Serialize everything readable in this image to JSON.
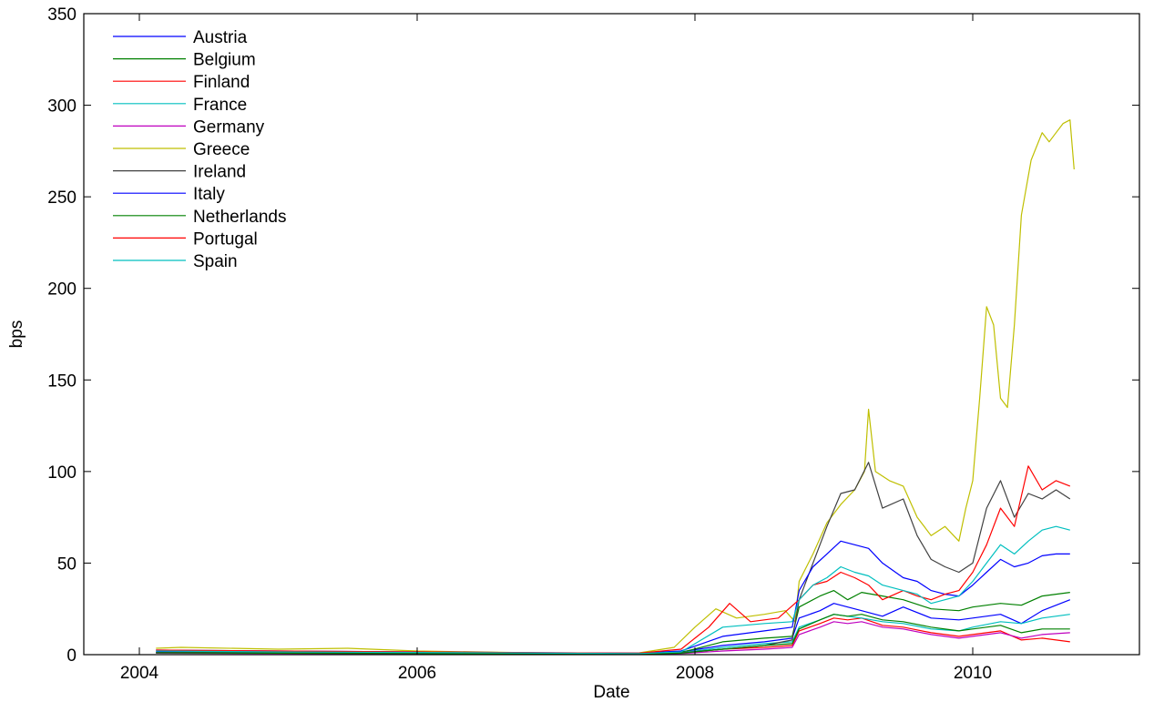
{
  "chart_data": {
    "type": "line",
    "title": "",
    "xlabel": "Date",
    "ylabel": "bps",
    "xlim": [
      2003.6,
      2011.2
    ],
    "ylim": [
      0,
      350
    ],
    "xticks": [
      2004,
      2006,
      2008,
      2010
    ],
    "yticks": [
      0,
      50,
      100,
      150,
      200,
      250,
      300,
      350
    ],
    "grid": false,
    "legend_position": "top-left",
    "series": [
      {
        "name": "Austria",
        "color": "#0000ff",
        "x": [
          2004.12,
          2005.0,
          2006.0,
          2007.0,
          2007.6,
          2007.9,
          2008.2,
          2008.5,
          2008.7,
          2008.75,
          2008.9,
          2009.0,
          2009.1,
          2009.2,
          2009.35,
          2009.5,
          2009.7,
          2009.9,
          2010.0,
          2010.2,
          2010.35,
          2010.5,
          2010.7
        ],
        "y": [
          1.5,
          1.2,
          0.8,
          0.5,
          0.4,
          1.5,
          5,
          7,
          9,
          20,
          24,
          28,
          26,
          24,
          21,
          26,
          20,
          19,
          20,
          22,
          17,
          24,
          30
        ]
      },
      {
        "name": "Belgium",
        "color": "#008000",
        "x": [
          2004.12,
          2005.0,
          2006.0,
          2007.0,
          2007.6,
          2007.9,
          2008.2,
          2008.5,
          2008.7,
          2008.75,
          2008.9,
          2009.0,
          2009.1,
          2009.2,
          2009.35,
          2009.5,
          2009.7,
          2009.9,
          2010.0,
          2010.2,
          2010.35,
          2010.5,
          2010.7
        ],
        "y": [
          1.2,
          1.0,
          0.7,
          0.4,
          0.3,
          1.2,
          7,
          9,
          10,
          26,
          32,
          35,
          30,
          34,
          32,
          30,
          25,
          24,
          26,
          28,
          27,
          32,
          34
        ]
      },
      {
        "name": "Finland",
        "color": "#ff0000",
        "x": [
          2004.12,
          2005.0,
          2006.0,
          2007.0,
          2007.6,
          2007.9,
          2008.2,
          2008.5,
          2008.7,
          2008.75,
          2008.9,
          2009.0,
          2009.1,
          2009.2,
          2009.35,
          2009.5,
          2009.7,
          2009.9,
          2010.0,
          2010.2,
          2010.35,
          2010.5,
          2010.7
        ],
        "y": [
          1.0,
          0.8,
          0.6,
          0.3,
          0.3,
          0.8,
          3,
          4,
          5,
          13,
          17,
          20,
          19,
          20,
          16,
          15,
          12,
          10,
          11,
          13,
          8,
          9,
          7
        ]
      },
      {
        "name": "France",
        "color": "#00bfbf",
        "x": [
          2004.12,
          2005.0,
          2006.0,
          2007.0,
          2007.6,
          2007.9,
          2008.2,
          2008.5,
          2008.7,
          2008.75,
          2008.9,
          2009.0,
          2009.1,
          2009.2,
          2009.35,
          2009.5,
          2009.7,
          2009.9,
          2010.0,
          2010.2,
          2010.35,
          2010.5,
          2010.7
        ],
        "y": [
          1.0,
          0.8,
          0.6,
          0.3,
          0.3,
          1.0,
          4,
          6,
          7,
          15,
          19,
          22,
          21,
          20,
          18,
          17,
          14,
          13,
          15,
          18,
          17,
          20,
          22
        ]
      },
      {
        "name": "Germany",
        "color": "#bf00bf",
        "x": [
          2004.12,
          2005.0,
          2006.0,
          2007.0,
          2007.6,
          2007.9,
          2008.2,
          2008.5,
          2008.7,
          2008.75,
          2008.9,
          2009.0,
          2009.1,
          2009.2,
          2009.35,
          2009.5,
          2009.7,
          2009.9,
          2010.0,
          2010.2,
          2010.35,
          2010.5,
          2010.7
        ],
        "y": [
          0.8,
          0.6,
          0.5,
          0.3,
          0.2,
          0.6,
          2,
          3,
          4,
          11,
          15,
          18,
          17,
          18,
          15,
          14,
          11,
          9,
          10,
          12,
          9,
          11,
          12
        ]
      },
      {
        "name": "Greece",
        "color": "#bfbf00",
        "x": [
          2004.12,
          2004.3,
          2005.0,
          2005.5,
          2006.0,
          2007.0,
          2007.6,
          2007.85,
          2008.0,
          2008.15,
          2008.3,
          2008.5,
          2008.65,
          2008.72,
          2008.75,
          2008.85,
          2008.95,
          2009.05,
          2009.15,
          2009.22,
          2009.25,
          2009.3,
          2009.4,
          2009.5,
          2009.6,
          2009.7,
          2009.8,
          2009.9,
          2009.95,
          2010.0,
          2010.05,
          2010.1,
          2010.15,
          2010.2,
          2010.25,
          2010.3,
          2010.35,
          2010.42,
          2010.5,
          2010.55,
          2010.6,
          2010.65,
          2010.7,
          2010.73
        ],
        "y": [
          3.5,
          4,
          3,
          3.5,
          2,
          0.8,
          1,
          4,
          15,
          25,
          20,
          22,
          24,
          18,
          40,
          55,
          72,
          82,
          90,
          100,
          134,
          100,
          95,
          92,
          75,
          65,
          70,
          62,
          80,
          95,
          140,
          190,
          180,
          140,
          135,
          180,
          240,
          270,
          285,
          280,
          285,
          290,
          292,
          265
        ]
      },
      {
        "name": "Ireland",
        "color": "#404040",
        "x": [
          2004.12,
          2005.0,
          2006.0,
          2007.0,
          2007.6,
          2007.9,
          2008.2,
          2008.5,
          2008.7,
          2008.75,
          2008.85,
          2008.95,
          2009.05,
          2009.15,
          2009.25,
          2009.35,
          2009.5,
          2009.6,
          2009.7,
          2009.8,
          2009.9,
          2010.0,
          2010.1,
          2010.2,
          2010.3,
          2010.4,
          2010.5,
          2010.6,
          2010.7
        ],
        "y": [
          1.2,
          1.0,
          0.8,
          0.5,
          0.4,
          1.0,
          3,
          5,
          8,
          30,
          50,
          70,
          88,
          90,
          105,
          80,
          85,
          65,
          52,
          48,
          45,
          50,
          80,
          95,
          75,
          88,
          85,
          90,
          85
        ]
      },
      {
        "name": "Italy",
        "color": "#0000ff",
        "x": [
          2004.12,
          2005.0,
          2006.0,
          2007.0,
          2007.6,
          2007.9,
          2008.2,
          2008.5,
          2008.7,
          2008.75,
          2008.85,
          2008.95,
          2009.05,
          2009.15,
          2009.25,
          2009.35,
          2009.5,
          2009.6,
          2009.7,
          2009.8,
          2009.9,
          2010.0,
          2010.1,
          2010.2,
          2010.3,
          2010.4,
          2010.5,
          2010.6,
          2010.7
        ],
        "y": [
          2.5,
          2.0,
          1.5,
          1.0,
          0.8,
          2,
          10,
          13,
          15,
          35,
          48,
          55,
          62,
          60,
          58,
          50,
          42,
          40,
          35,
          33,
          32,
          38,
          45,
          52,
          48,
          50,
          54,
          55,
          55
        ]
      },
      {
        "name": "Netherlands",
        "color": "#008000",
        "x": [
          2004.12,
          2005.0,
          2006.0,
          2007.0,
          2007.6,
          2007.9,
          2008.2,
          2008.5,
          2008.7,
          2008.75,
          2008.9,
          2009.0,
          2009.1,
          2009.2,
          2009.35,
          2009.5,
          2009.7,
          2009.9,
          2010.0,
          2010.2,
          2010.35,
          2010.5,
          2010.7
        ],
        "y": [
          1.0,
          0.8,
          0.6,
          0.3,
          0.3,
          0.8,
          3,
          5,
          6,
          14,
          19,
          22,
          21,
          22,
          19,
          18,
          15,
          13,
          14,
          16,
          12,
          14,
          14
        ]
      },
      {
        "name": "Portugal",
        "color": "#ff0000",
        "x": [
          2004.12,
          2005.0,
          2006.0,
          2007.0,
          2007.6,
          2007.9,
          2008.1,
          2008.25,
          2008.4,
          2008.6,
          2008.75,
          2008.85,
          2008.95,
          2009.05,
          2009.15,
          2009.25,
          2009.35,
          2009.5,
          2009.6,
          2009.7,
          2009.8,
          2009.9,
          2010.0,
          2010.1,
          2010.2,
          2010.3,
          2010.4,
          2010.5,
          2010.6,
          2010.7
        ],
        "y": [
          2.5,
          2.0,
          1.5,
          1.0,
          0.8,
          3,
          15,
          28,
          18,
          20,
          30,
          38,
          40,
          45,
          42,
          38,
          30,
          35,
          32,
          30,
          33,
          35,
          45,
          60,
          80,
          70,
          103,
          90,
          95,
          92
        ]
      },
      {
        "name": "Spain",
        "color": "#00bfbf",
        "x": [
          2004.12,
          2005.0,
          2006.0,
          2007.0,
          2007.6,
          2007.9,
          2008.2,
          2008.5,
          2008.7,
          2008.75,
          2008.85,
          2008.95,
          2009.05,
          2009.15,
          2009.25,
          2009.35,
          2009.5,
          2009.6,
          2009.7,
          2009.8,
          2009.9,
          2010.0,
          2010.1,
          2010.2,
          2010.3,
          2010.4,
          2010.5,
          2010.6,
          2010.7
        ],
        "y": [
          2.0,
          1.5,
          1.2,
          0.8,
          0.6,
          1.5,
          15,
          17,
          18,
          30,
          38,
          42,
          48,
          45,
          43,
          38,
          35,
          33,
          28,
          30,
          32,
          40,
          50,
          60,
          55,
          62,
          68,
          70,
          68
        ]
      }
    ]
  }
}
